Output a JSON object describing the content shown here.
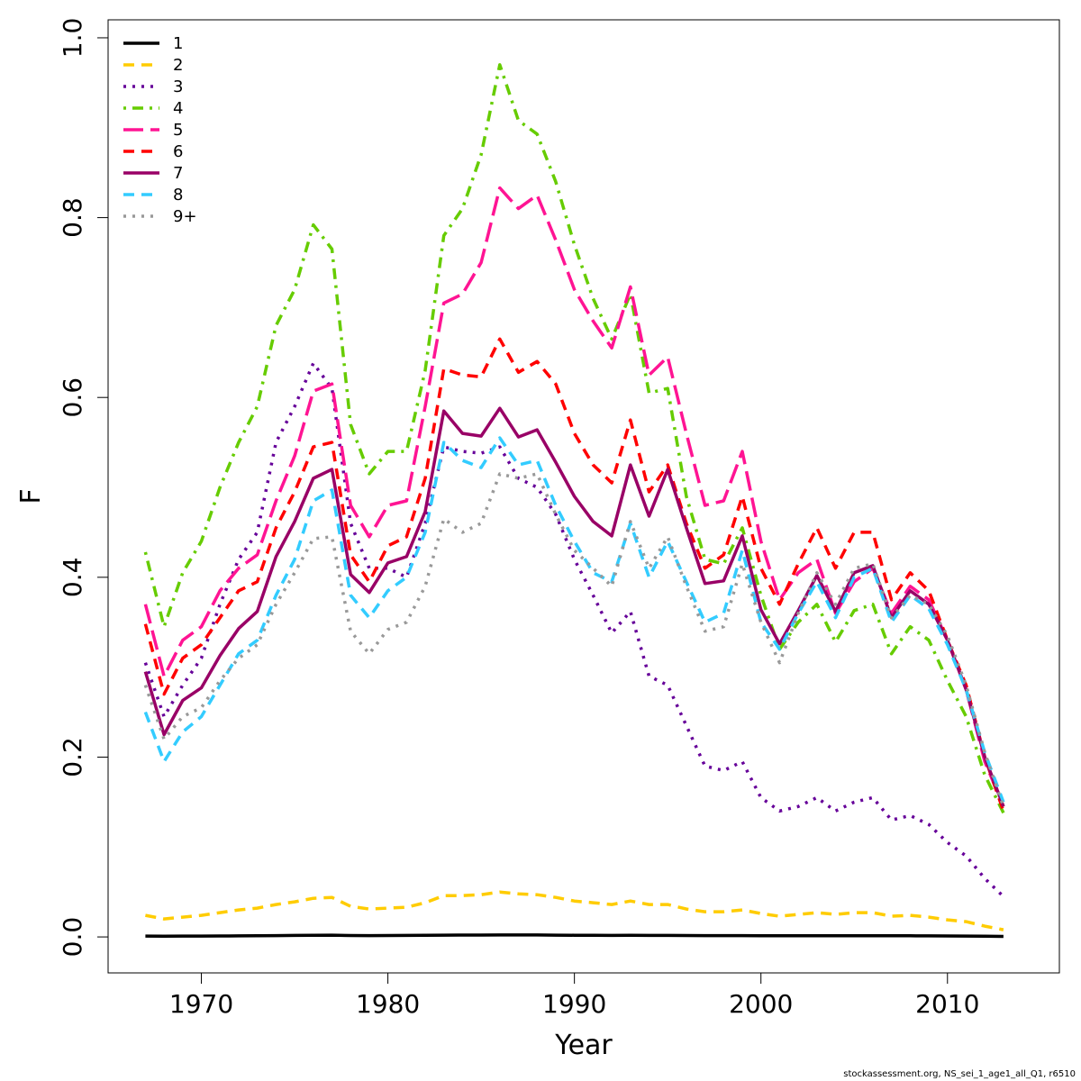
{
  "chart_data": {
    "type": "line",
    "xlabel": "Year",
    "ylabel": "F",
    "xlim": [
      1965,
      2016
    ],
    "ylim": [
      -0.04,
      1.02
    ],
    "xticks": [
      1970,
      1980,
      1990,
      2000,
      2010
    ],
    "yticks": [
      0.0,
      0.2,
      0.4,
      0.6,
      0.8,
      1.0
    ],
    "ytick_labels": [
      "0.0",
      "0.2",
      "0.4",
      "0.6",
      "0.8",
      "1.0"
    ],
    "grid": false,
    "legend_position": "top-left",
    "x": [
      1967,
      1968,
      1969,
      1970,
      1971,
      1972,
      1973,
      1974,
      1975,
      1976,
      1977,
      1978,
      1979,
      1980,
      1981,
      1982,
      1983,
      1984,
      1985,
      1986,
      1987,
      1988,
      1989,
      1990,
      1991,
      1992,
      1993,
      1994,
      1995,
      1996,
      1997,
      1998,
      1999,
      2000,
      2001,
      2002,
      2003,
      2004,
      2005,
      2006,
      2007,
      2008,
      2009,
      2010,
      2011,
      2012,
      2013
    ],
    "series": [
      {
        "name": "1",
        "color": "#000000",
        "dash": "solid",
        "width": 3.5,
        "values": [
          0.001,
          0.0009,
          0.001,
          0.001,
          0.0011,
          0.0012,
          0.0013,
          0.0015,
          0.0017,
          0.0019,
          0.002,
          0.0016,
          0.0015,
          0.0016,
          0.0017,
          0.0018,
          0.002,
          0.0021,
          0.0021,
          0.0022,
          0.0022,
          0.0022,
          0.002,
          0.0019,
          0.0018,
          0.0017,
          0.0018,
          0.0017,
          0.0017,
          0.0016,
          0.0015,
          0.0015,
          0.0015,
          0.0014,
          0.0013,
          0.0013,
          0.0014,
          0.0013,
          0.0014,
          0.0014,
          0.0013,
          0.0013,
          0.0012,
          0.0011,
          0.001,
          0.0008,
          0.0006
        ]
      },
      {
        "name": "2",
        "color": "#ffcc00",
        "dash": "dash",
        "width": 3.5,
        "values": [
          0.024,
          0.02,
          0.022,
          0.024,
          0.027,
          0.03,
          0.032,
          0.036,
          0.039,
          0.043,
          0.044,
          0.034,
          0.031,
          0.032,
          0.033,
          0.038,
          0.046,
          0.046,
          0.047,
          0.05,
          0.048,
          0.047,
          0.044,
          0.04,
          0.038,
          0.036,
          0.04,
          0.036,
          0.036,
          0.031,
          0.028,
          0.028,
          0.03,
          0.026,
          0.023,
          0.025,
          0.027,
          0.025,
          0.027,
          0.027,
          0.023,
          0.024,
          0.022,
          0.019,
          0.017,
          0.012,
          0.008
        ]
      },
      {
        "name": "3",
        "color": "#660099",
        "dash": "dot",
        "width": 3.5,
        "values": [
          0.305,
          0.245,
          0.28,
          0.31,
          0.37,
          0.42,
          0.45,
          0.55,
          0.59,
          0.638,
          0.61,
          0.46,
          0.41,
          0.41,
          0.4,
          0.46,
          0.545,
          0.54,
          0.538,
          0.545,
          0.51,
          0.5,
          0.47,
          0.42,
          0.38,
          0.338,
          0.362,
          0.29,
          0.28,
          0.235,
          0.19,
          0.185,
          0.195,
          0.155,
          0.14,
          0.145,
          0.155,
          0.14,
          0.15,
          0.155,
          0.13,
          0.135,
          0.125,
          0.105,
          0.09,
          0.065,
          0.045
        ]
      },
      {
        "name": "4",
        "color": "#66cc00",
        "dash": "dashdot",
        "width": 3.5,
        "values": [
          0.428,
          0.345,
          0.405,
          0.44,
          0.5,
          0.55,
          0.59,
          0.68,
          0.72,
          0.792,
          0.765,
          0.57,
          0.515,
          0.54,
          0.54,
          0.63,
          0.78,
          0.81,
          0.87,
          0.97,
          0.908,
          0.893,
          0.84,
          0.77,
          0.71,
          0.665,
          0.715,
          0.605,
          0.61,
          0.49,
          0.42,
          0.415,
          0.455,
          0.38,
          0.32,
          0.35,
          0.37,
          0.328,
          0.363,
          0.37,
          0.315,
          0.345,
          0.33,
          0.285,
          0.245,
          0.18,
          0.138
        ]
      },
      {
        "name": "5",
        "color": "#ff1493",
        "dash": "longdash",
        "width": 3.5,
        "values": [
          0.37,
          0.29,
          0.33,
          0.345,
          0.385,
          0.41,
          0.425,
          0.485,
          0.535,
          0.607,
          0.615,
          0.48,
          0.445,
          0.48,
          0.485,
          0.59,
          0.705,
          0.715,
          0.75,
          0.833,
          0.81,
          0.825,
          0.775,
          0.72,
          0.685,
          0.655,
          0.723,
          0.625,
          0.645,
          0.56,
          0.48,
          0.485,
          0.54,
          0.44,
          0.375,
          0.405,
          0.42,
          0.36,
          0.395,
          0.41,
          0.36,
          0.39,
          0.375,
          0.33,
          0.275,
          0.195,
          0.145
        ]
      },
      {
        "name": "6",
        "color": "#ff0000",
        "dash": "dash",
        "width": 3.5,
        "values": [
          0.348,
          0.27,
          0.31,
          0.325,
          0.355,
          0.385,
          0.395,
          0.455,
          0.495,
          0.545,
          0.55,
          0.425,
          0.395,
          0.435,
          0.445,
          0.51,
          0.632,
          0.625,
          0.623,
          0.665,
          0.628,
          0.64,
          0.615,
          0.56,
          0.525,
          0.505,
          0.575,
          0.495,
          0.525,
          0.46,
          0.41,
          0.425,
          0.49,
          0.41,
          0.37,
          0.415,
          0.455,
          0.41,
          0.45,
          0.45,
          0.375,
          0.405,
          0.385,
          0.33,
          0.28,
          0.2,
          0.14
        ]
      },
      {
        "name": "7",
        "color": "#990066",
        "dash": "solid",
        "width": 3.5,
        "values": [
          0.295,
          0.225,
          0.263,
          0.277,
          0.313,
          0.343,
          0.362,
          0.423,
          0.462,
          0.51,
          0.52,
          0.403,
          0.383,
          0.416,
          0.423,
          0.473,
          0.585,
          0.56,
          0.557,
          0.588,
          0.556,
          0.564,
          0.528,
          0.49,
          0.462,
          0.446,
          0.525,
          0.468,
          0.52,
          0.455,
          0.393,
          0.396,
          0.446,
          0.364,
          0.326,
          0.363,
          0.402,
          0.362,
          0.405,
          0.413,
          0.355,
          0.385,
          0.37,
          0.33,
          0.275,
          0.2,
          0.145
        ]
      },
      {
        "name": "8",
        "color": "#33ccff",
        "dash": "dash",
        "width": 3.5,
        "values": [
          0.25,
          0.195,
          0.228,
          0.245,
          0.28,
          0.315,
          0.33,
          0.38,
          0.42,
          0.485,
          0.497,
          0.38,
          0.355,
          0.385,
          0.4,
          0.45,
          0.55,
          0.53,
          0.522,
          0.555,
          0.525,
          0.53,
          0.48,
          0.44,
          0.405,
          0.395,
          0.46,
          0.4,
          0.44,
          0.395,
          0.35,
          0.36,
          0.43,
          0.35,
          0.32,
          0.36,
          0.395,
          0.355,
          0.4,
          0.41,
          0.35,
          0.38,
          0.365,
          0.325,
          0.275,
          0.205,
          0.15
        ]
      },
      {
        "name": "9+",
        "color": "#999999",
        "dash": "dot",
        "width": 3.5,
        "values": [
          0.28,
          0.22,
          0.245,
          0.255,
          0.285,
          0.31,
          0.325,
          0.37,
          0.405,
          0.443,
          0.445,
          0.34,
          0.315,
          0.342,
          0.35,
          0.39,
          0.465,
          0.45,
          0.46,
          0.515,
          0.51,
          0.515,
          0.47,
          0.43,
          0.41,
          0.39,
          0.462,
          0.41,
          0.445,
          0.39,
          0.34,
          0.345,
          0.415,
          0.35,
          0.305,
          0.36,
          0.405,
          0.37,
          0.41,
          0.415,
          0.355,
          0.38,
          0.37,
          0.335,
          0.28,
          0.205,
          0.145
        ]
      }
    ]
  },
  "footer": "stockassessment.org, NS_sei_1_age1_all_Q1, r6510"
}
